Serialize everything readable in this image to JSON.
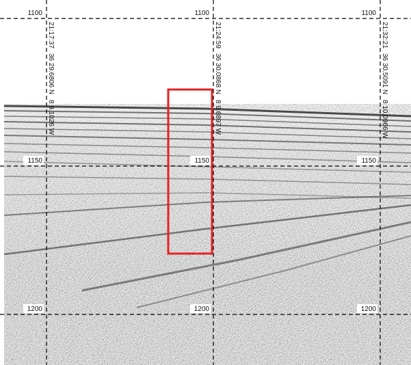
{
  "columns": [
    {
      "time": "21:17:37",
      "latitude": "36 29.6806 N",
      "longitude": "8 9.1026 W",
      "depths": [
        "1100",
        "1150",
        "1200"
      ]
    },
    {
      "time": "21:24:59",
      "latitude": "36 30.0868 N",
      "longitude": "8 9.6897 W",
      "depths": [
        "1100",
        "1150",
        "1200"
      ]
    },
    {
      "time": "21:32:21",
      "latitude": "36 30.5091 N",
      "longitude": "8 10.0966 W",
      "depths": [
        "1100",
        "1150",
        "1200"
      ]
    }
  ]
}
